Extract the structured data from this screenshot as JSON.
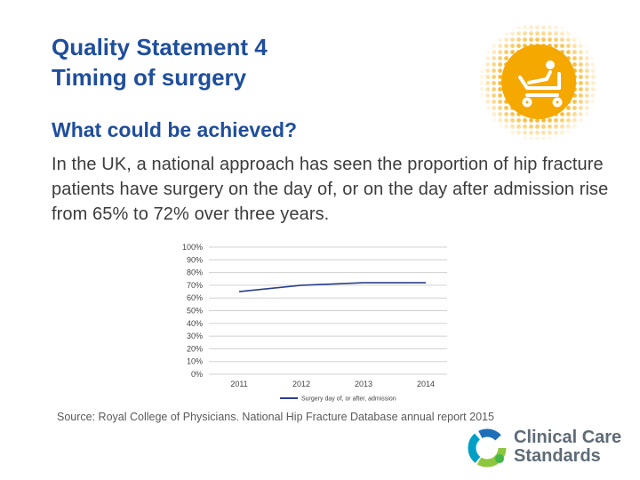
{
  "slide": {
    "title_line1": "Quality Statement 4",
    "title_line2": "Timing of surgery",
    "subtitle": "What could be achieved?",
    "body": "In the UK, a national approach has seen the proportion of hip fracture patients have surgery on the day of, or on the day after admission rise from 65% to 72% over three years.",
    "source": "Source: Royal College of Physicians. National Hip Fracture Database annual report 2015"
  },
  "logo": {
    "line1": "Clinical Care",
    "line2": "Standards",
    "text_color": "#5e6b77",
    "ring_colors": [
      "#8dc63f",
      "#00a0c6",
      "#1d6fb8",
      "#45b649"
    ]
  },
  "badge": {
    "icon": "hospital-bed-patient-icon",
    "color": "#f5a800"
  },
  "colors": {
    "title": "#1f4e9c",
    "series": "#2b3f8c",
    "grid": "#d0d0d0"
  },
  "chart_data": {
    "type": "line",
    "categories": [
      "2011",
      "2012",
      "2013",
      "2014"
    ],
    "series": [
      {
        "name": "Surgery day of, or after, admission",
        "values": [
          65,
          70,
          72,
          72
        ]
      }
    ],
    "ylim": [
      0,
      100
    ],
    "yticks": [
      "0%",
      "10%",
      "20%",
      "30%",
      "40%",
      "50%",
      "60%",
      "70%",
      "80%",
      "90%",
      "100%"
    ],
    "grid": true,
    "legend": "bottom"
  }
}
